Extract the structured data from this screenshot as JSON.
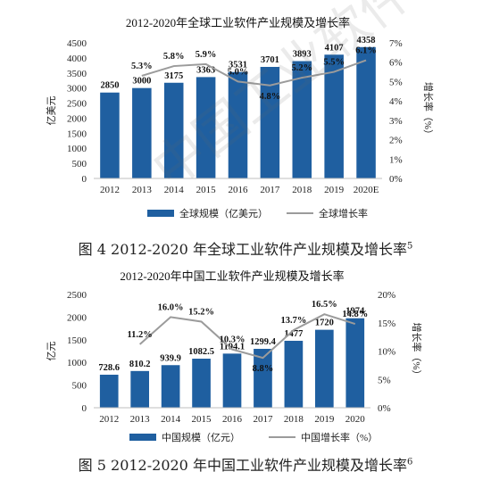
{
  "chart_data": [
    {
      "type": "bar",
      "title": "2012-2020年全球工业软件产业规模及增长率",
      "categories": [
        "2012",
        "2013",
        "2014",
        "2015",
        "2016",
        "2017",
        "2018",
        "2019",
        "2020E"
      ],
      "series": [
        {
          "name": "全球规模（亿美元）",
          "type": "bar",
          "axis": "left",
          "values": [
            2850,
            3000,
            3175,
            3363,
            3531,
            3701,
            3893,
            4107,
            4358
          ],
          "labels": [
            "2850",
            "3000",
            "3175",
            "3363",
            "3531",
            "3701",
            "3893",
            "4107",
            "4358"
          ]
        },
        {
          "name": "全球增长率",
          "type": "line",
          "axis": "right",
          "values": [
            null,
            5.3,
            5.8,
            5.9,
            5.0,
            4.8,
            5.2,
            5.5,
            6.1
          ],
          "labels": [
            "",
            "5.3%",
            "5.8%",
            "5.9%",
            "5.0%",
            "4.8%",
            "5.2%",
            "5.5%",
            "6.1%"
          ]
        }
      ],
      "ylabel": "亿美元",
      "y2label": "增长率（%）",
      "ylim": [
        0,
        4500
      ],
      "y2lim": [
        0,
        7
      ],
      "yticks": [
        "0",
        "500",
        "1000",
        "1500",
        "2000",
        "2500",
        "3000",
        "3500",
        "4000",
        "4500"
      ],
      "y2ticks": [
        "0%",
        "1%",
        "2%",
        "3%",
        "4%",
        "5%",
        "6%",
        "7%"
      ],
      "legend": "bottom",
      "grid": false,
      "colors": {
        "bar": "#1f5fa0",
        "line": "#9b9b9b"
      }
    },
    {
      "type": "bar",
      "title": "2012-2020年中国工业软件产业规模及增长率",
      "categories": [
        "2012",
        "2013",
        "2014",
        "2015",
        "2016",
        "2017",
        "2018",
        "2019",
        "2020"
      ],
      "series": [
        {
          "name": "中国规模（亿元）",
          "type": "bar",
          "axis": "left",
          "values": [
            728.6,
            810.2,
            939.9,
            1082.5,
            1194.1,
            1299.4,
            1477,
            1720,
            1974
          ],
          "labels": [
            "728.6",
            "810.2",
            "939.9",
            "1082.5",
            "1194.1",
            "1299.4",
            "1477",
            "1720",
            "1974"
          ]
        },
        {
          "name": "中国增长率（%）",
          "type": "line",
          "axis": "right",
          "values": [
            null,
            11.2,
            16.0,
            15.2,
            10.3,
            8.8,
            13.7,
            16.5,
            14.8
          ],
          "labels": [
            "",
            "11.2%",
            "16.0%",
            "15.2%",
            "10.3%",
            "8.8%",
            "13.7%",
            "16.5%",
            "14.8%"
          ]
        }
      ],
      "ylabel": "亿元",
      "y2label": "增长率（%）",
      "ylim": [
        0,
        2500
      ],
      "y2lim": [
        0,
        20
      ],
      "yticks": [
        "0",
        "500",
        "1000",
        "1500",
        "2000",
        "2500"
      ],
      "y2ticks": [
        "0%",
        "5%",
        "10%",
        "15%",
        "20%"
      ],
      "legend": "bottom",
      "grid": false,
      "colors": {
        "bar": "#1f5fa0",
        "line": "#9b9b9b"
      }
    }
  ],
  "captions": {
    "fig4": "图 4 2012-2020 年全球工业软件产业规模及增长率",
    "fig4_ref": "5",
    "fig5": "图 5 2012-2020 年中国工业软件产业规模及增长率",
    "fig5_ref": "6"
  },
  "watermark": "中国工业软件产业联盟"
}
